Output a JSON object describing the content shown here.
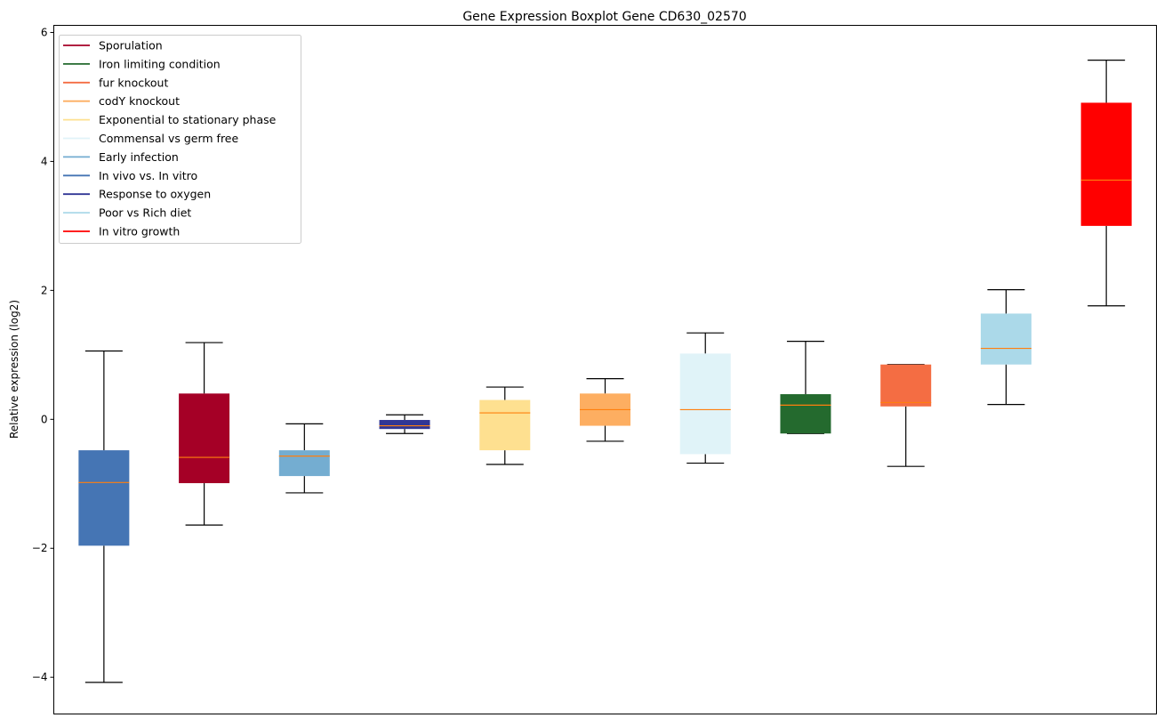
{
  "chart_data": {
    "type": "boxplot",
    "title": "Gene Expression Boxplot Gene CD630_02570",
    "xlabel": "",
    "ylabel": "Relative expression (log2)",
    "ylim": [
      -4.57,
      6.11
    ],
    "yticks": [
      -4,
      -2,
      0,
      2,
      4,
      6
    ],
    "ytick_labels": [
      "−4",
      "−2",
      "0",
      "2",
      "4",
      "6"
    ],
    "legend_position": "top-left",
    "median_color": "#ff7f0e",
    "series": [
      {
        "name": "In vivo vs. In vitro",
        "color": "#4575b4",
        "whislo": -4.08,
        "q1": -1.96,
        "med": -0.98,
        "q3": -0.48,
        "whishi": 1.06
      },
      {
        "name": "Sporulation",
        "color": "#a50026",
        "whislo": -1.64,
        "q1": -0.99,
        "med": -0.59,
        "q3": 0.4,
        "whishi": 1.19
      },
      {
        "name": "Early infection",
        "color": "#74add1",
        "whislo": -1.14,
        "q1": -0.88,
        "med": -0.57,
        "q3": -0.48,
        "whishi": -0.07
      },
      {
        "name": "Response to oxygen",
        "color": "#313695",
        "whislo": -0.22,
        "q1": -0.15,
        "med": -0.1,
        "q3": -0.01,
        "whishi": 0.07
      },
      {
        "name": "Exponential to stationary phase",
        "color": "#fee090",
        "whislo": -0.7,
        "q1": -0.48,
        "med": 0.1,
        "q3": 0.3,
        "whishi": 0.5
      },
      {
        "name": "codY knockout",
        "color": "#fdae61",
        "whislo": -0.34,
        "q1": -0.1,
        "med": 0.15,
        "q3": 0.4,
        "whishi": 0.63
      },
      {
        "name": "Commensal vs germ free",
        "color": "#e0f3f8",
        "whislo": -0.68,
        "q1": -0.54,
        "med": 0.15,
        "q3": 1.02,
        "whishi": 1.34
      },
      {
        "name": "Iron limiting condition",
        "color": "#246a2e",
        "whislo": -0.22,
        "q1": -0.22,
        "med": 0.22,
        "q3": 0.39,
        "whishi": 1.21
      },
      {
        "name": "fur knockout",
        "color": "#f46d43",
        "whislo": -0.73,
        "q1": 0.2,
        "med": 0.26,
        "q3": 0.85,
        "whishi": 0.85
      },
      {
        "name": "Poor vs Rich diet",
        "color": "#abd9e9",
        "whislo": 0.23,
        "q1": 0.85,
        "med": 1.1,
        "q3": 1.64,
        "whishi": 2.01
      },
      {
        "name": "In vitro growth",
        "color": "#ff0000",
        "whislo": 1.76,
        "q1": 3.0,
        "med": 3.71,
        "q3": 4.91,
        "whishi": 5.57
      }
    ],
    "legend": [
      {
        "label": "Sporulation",
        "color": "#a50026"
      },
      {
        "label": "Iron limiting condition",
        "color": "#246a2e"
      },
      {
        "label": "fur knockout",
        "color": "#f46d43"
      },
      {
        "label": "codY knockout",
        "color": "#fdae61"
      },
      {
        "label": "Exponential to stationary phase",
        "color": "#fee090"
      },
      {
        "label": "Commensal vs germ free",
        "color": "#e0f3f8"
      },
      {
        "label": "Early infection",
        "color": "#74add1"
      },
      {
        "label": "In vivo vs. In vitro",
        "color": "#4575b4"
      },
      {
        "label": "Response to oxygen",
        "color": "#313695"
      },
      {
        "label": "Poor vs Rich diet",
        "color": "#abd9e9"
      },
      {
        "label": "In vitro growth",
        "color": "#ff0000"
      }
    ]
  }
}
